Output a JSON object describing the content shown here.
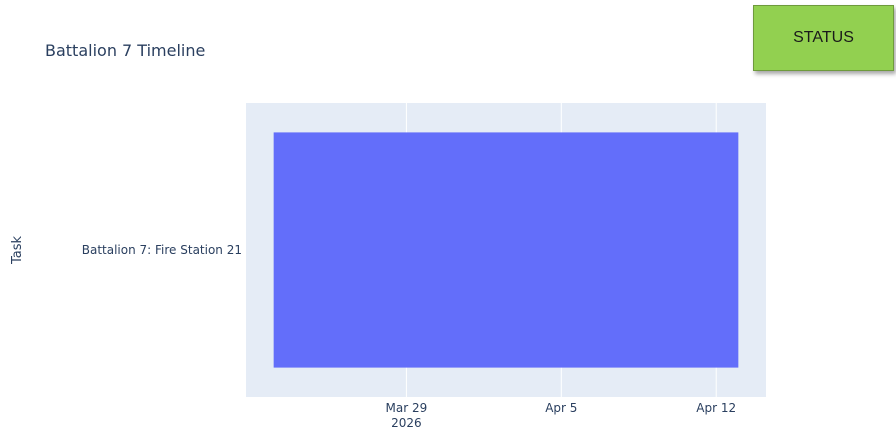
{
  "status_button": {
    "label": "STATUS",
    "color": "#92d050"
  },
  "chart_data": {
    "type": "gantt",
    "title": "Battalion 7 Timeline",
    "xlabel": "",
    "ylabel": "Task",
    "x_axis_type": "date",
    "xlim": [
      "2026-03-21T18:00",
      "2026-04-14T06:00"
    ],
    "x_ticks": [
      {
        "date": "2026-03-29",
        "label": "Mar 29",
        "sublabel": "2026"
      },
      {
        "date": "2026-04-05",
        "label": "Apr 5",
        "sublabel": ""
      },
      {
        "date": "2026-04-12",
        "label": "Apr 12",
        "sublabel": ""
      }
    ],
    "tasks": [
      {
        "task": "Battalion 7: Fire Station 21",
        "start": "2026-03-23",
        "finish": "2026-04-13"
      }
    ],
    "bar_color": "#636efa",
    "plot_bg": "#e5ecf6",
    "grid": true,
    "legend": false
  }
}
